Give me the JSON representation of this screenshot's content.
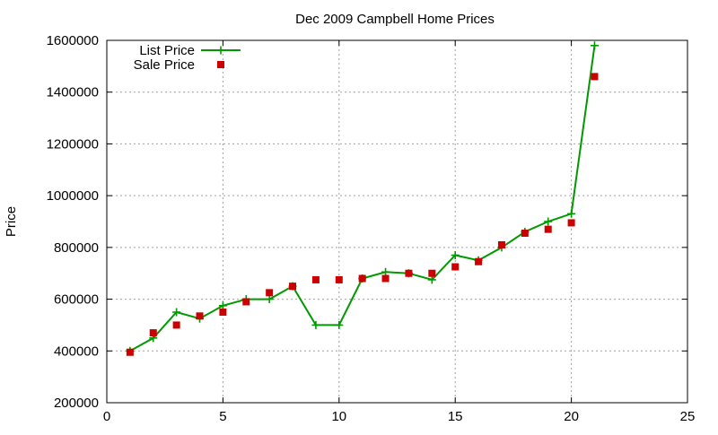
{
  "chart_data": {
    "type": "line",
    "title": "Dec 2009 Campbell Home Prices",
    "xlabel": "",
    "ylabel": "Price",
    "xlim": [
      0,
      25
    ],
    "ylim": [
      200000,
      1600000
    ],
    "xticks": [
      0,
      5,
      10,
      15,
      20,
      25
    ],
    "yticks": [
      200000,
      400000,
      600000,
      800000,
      1000000,
      1200000,
      1400000,
      1600000
    ],
    "x_tick_labels": [
      "0",
      "5",
      "10",
      "15",
      "20",
      "25"
    ],
    "y_tick_labels": [
      "200000",
      "400000",
      "600000",
      "800000",
      "1000000",
      "1200000",
      "1400000",
      "1600000"
    ],
    "grid": true,
    "legend_position": "top-left",
    "series": [
      {
        "name": "List Price",
        "style": "linespoints",
        "marker": "plus",
        "color": "#009900",
        "x": [
          1,
          2,
          3,
          4,
          5,
          6,
          7,
          8,
          9,
          10,
          11,
          12,
          13,
          14,
          15,
          16,
          17,
          18,
          19,
          20,
          21
        ],
        "y": [
          400000,
          450000,
          550000,
          525000,
          575000,
          600000,
          600000,
          650000,
          500000,
          500000,
          680000,
          705000,
          700000,
          675000,
          770000,
          750000,
          800000,
          860000,
          900000,
          930000,
          1580000
        ]
      },
      {
        "name": "Sale Price",
        "style": "points",
        "marker": "square",
        "color": "#cc0000",
        "x": [
          1,
          2,
          3,
          4,
          5,
          6,
          7,
          8,
          9,
          10,
          11,
          12,
          13,
          14,
          15,
          16,
          17,
          18,
          19,
          20,
          21
        ],
        "y": [
          395000,
          470000,
          500000,
          535000,
          550000,
          590000,
          625000,
          650000,
          675000,
          675000,
          680000,
          680000,
          700000,
          700000,
          725000,
          745000,
          810000,
          855000,
          870000,
          895000,
          1460000
        ]
      }
    ]
  }
}
